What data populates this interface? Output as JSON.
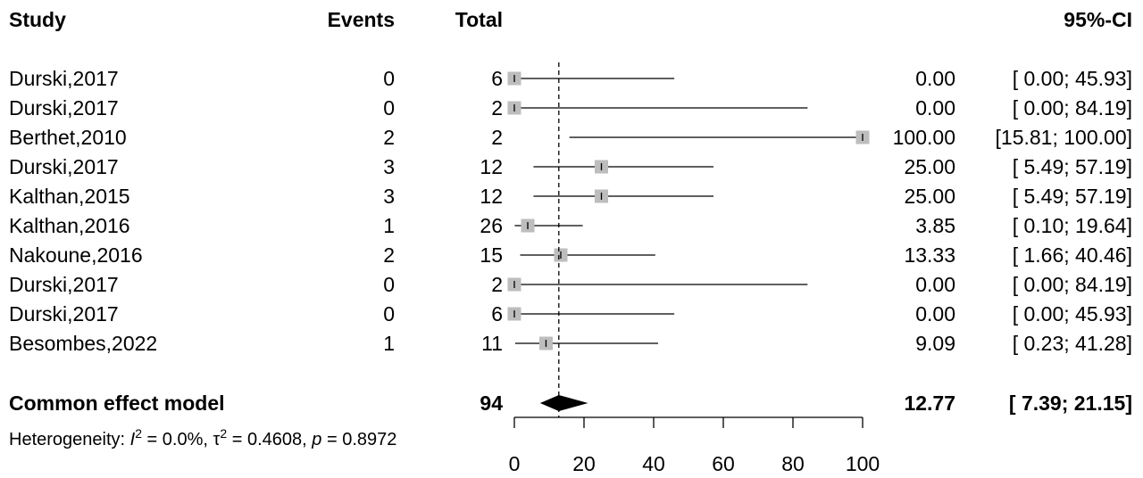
{
  "headers": {
    "study": "Study",
    "events": "Events",
    "total": "Total",
    "ci": "95%-CI"
  },
  "chart_data": {
    "type": "forest",
    "title": "",
    "xlim": [
      0,
      100
    ],
    "x_ticks": [
      0,
      20,
      40,
      60,
      80,
      100
    ],
    "x_tick_labels": [
      "0",
      "20",
      "40",
      "60",
      "80",
      "100"
    ],
    "reference_line": 12.77,
    "studies": [
      {
        "study": "Durski,2017",
        "events": "0",
        "total": "6",
        "estimate": 0.0,
        "lower": 0.0,
        "upper": 45.93,
        "est_label": "0.00",
        "ci_label": "[ 0.00;  45.93]"
      },
      {
        "study": "Durski,2017",
        "events": "0",
        "total": "2",
        "estimate": 0.0,
        "lower": 0.0,
        "upper": 84.19,
        "est_label": "0.00",
        "ci_label": "[ 0.00;  84.19]"
      },
      {
        "study": "Berthet,2010",
        "events": "2",
        "total": "2",
        "estimate": 100.0,
        "lower": 15.81,
        "upper": 100.0,
        "est_label": "100.00",
        "ci_label": "[15.81; 100.00]"
      },
      {
        "study": "Durski,2017",
        "events": "3",
        "total": "12",
        "estimate": 25.0,
        "lower": 5.49,
        "upper": 57.19,
        "est_label": "25.00",
        "ci_label": "[ 5.49;  57.19]"
      },
      {
        "study": "Kalthan,2015",
        "events": "3",
        "total": "12",
        "estimate": 25.0,
        "lower": 5.49,
        "upper": 57.19,
        "est_label": "25.00",
        "ci_label": "[ 5.49;  57.19]"
      },
      {
        "study": "Kalthan,2016",
        "events": "1",
        "total": "26",
        "estimate": 3.85,
        "lower": 0.1,
        "upper": 19.64,
        "est_label": "3.85",
        "ci_label": "[ 0.10;  19.64]"
      },
      {
        "study": "Nakoune,2016",
        "events": "2",
        "total": "15",
        "estimate": 13.33,
        "lower": 1.66,
        "upper": 40.46,
        "est_label": "13.33",
        "ci_label": "[ 1.66;  40.46]"
      },
      {
        "study": "Durski,2017",
        "events": "0",
        "total": "2",
        "estimate": 0.0,
        "lower": 0.0,
        "upper": 84.19,
        "est_label": "0.00",
        "ci_label": "[ 0.00;  84.19]"
      },
      {
        "study": "Durski,2017",
        "events": "0",
        "total": "6",
        "estimate": 0.0,
        "lower": 0.0,
        "upper": 45.93,
        "est_label": "0.00",
        "ci_label": "[ 0.00;  45.93]"
      },
      {
        "study": "Besombes,2022",
        "events": "1",
        "total": "11",
        "estimate": 9.09,
        "lower": 0.23,
        "upper": 41.28,
        "est_label": "9.09",
        "ci_label": "[ 0.23;  41.28]"
      }
    ],
    "pooled": {
      "label": "Common effect model",
      "total": "94",
      "estimate": 12.77,
      "lower": 7.39,
      "upper": 21.15,
      "est_label": "12.77",
      "ci_label": "[ 7.39;  21.15]"
    },
    "heterogeneity": {
      "prefix": "Heterogeneity: ",
      "i2_symbol": "I",
      "i2_value": " = 0.0%, ",
      "tau2_symbol": "τ",
      "tau2_value": " = 0.4608, ",
      "p_symbol": "p",
      "p_value": " = 0.8972"
    },
    "colors": {
      "square": "#bdbdbd",
      "line": "#000000",
      "diamond": "#000000"
    }
  }
}
